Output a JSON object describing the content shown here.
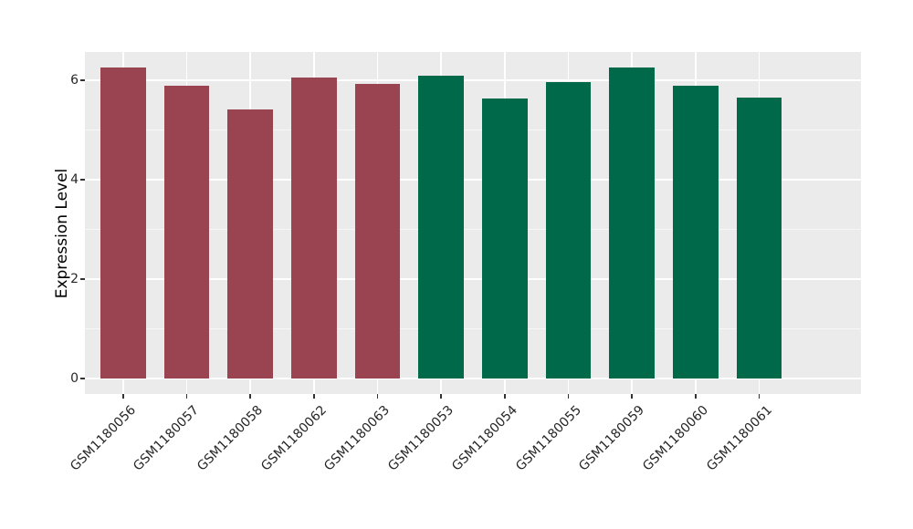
{
  "chart_data": {
    "type": "bar",
    "title": "",
    "xlabel": "",
    "ylabel": "Expression Level",
    "categories": [
      "GSM1180056",
      "GSM1180057",
      "GSM1180058",
      "GSM1180062",
      "GSM1180063",
      "GSM1180053",
      "GSM1180054",
      "GSM1180055",
      "GSM1180059",
      "GSM1180060",
      "GSM1180061"
    ],
    "values": [
      6.25,
      5.9,
      5.42,
      6.05,
      5.92,
      6.1,
      5.63,
      5.97,
      6.26,
      5.89,
      5.65
    ],
    "bar_colors": [
      "#9A4452",
      "#9A4452",
      "#9A4452",
      "#9A4452",
      "#9A4452",
      "#00694A",
      "#00694A",
      "#00694A",
      "#00694A",
      "#00694A",
      "#00694A"
    ],
    "group_colors": {
      "left_group": "#9A4452",
      "right_group": "#00694A"
    },
    "yticks": [
      0,
      2,
      4,
      6
    ],
    "y_minor_gridlines": [
      1,
      3,
      5
    ],
    "ylim": [
      -0.31,
      6.57
    ],
    "grid": "on",
    "legend": "none",
    "panel_bg": "#EBEBEB",
    "grid_color": "#FFFFFF",
    "outer_bg": "#FFFFFF",
    "tick_color": "#333333",
    "tick_label_color": "#262626",
    "axis_title_color": "#000000",
    "x_tick_label_rotation_deg": 45
  }
}
